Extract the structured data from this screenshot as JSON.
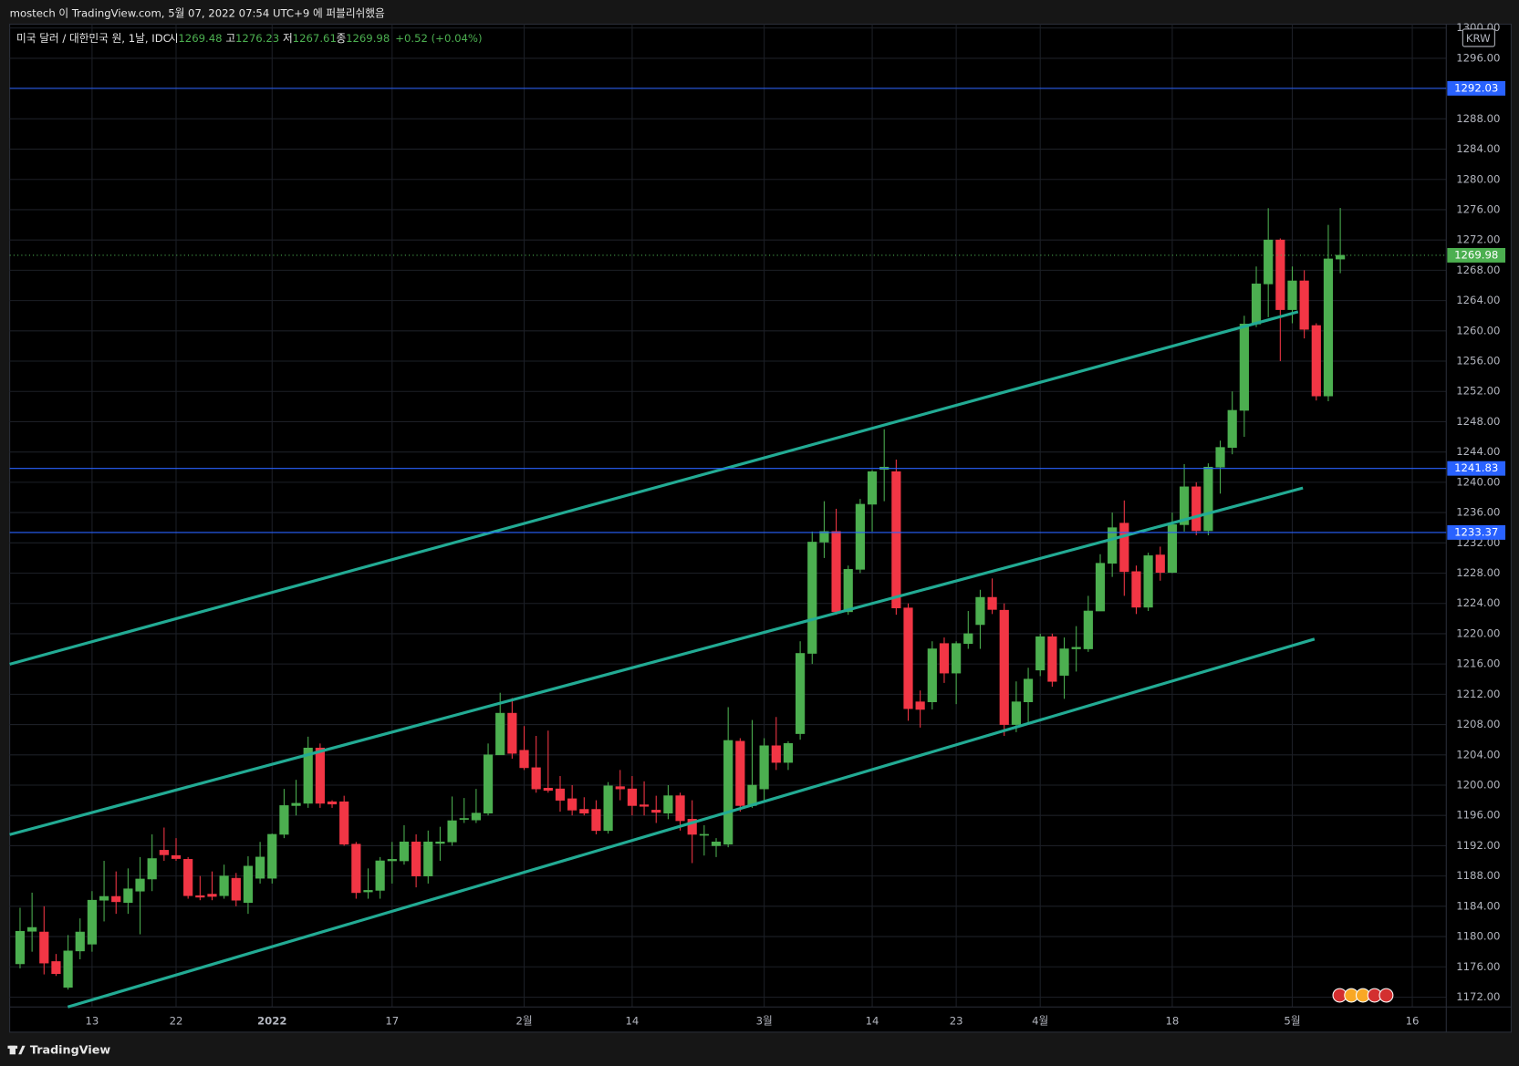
{
  "header": {
    "publish_note": "mostech 이 TradingView.com, 5월 07, 2022 07:54 UTC+9 에 퍼블리쉬했음"
  },
  "chart_data": {
    "type": "candlestick",
    "symbol": "미국 달러 / 대한민국 원, 1날, IDC",
    "legend": {
      "open_label": "시",
      "high_label": "고",
      "low_label": "저",
      "close_label": "종",
      "change": "+0.52 (+0.04%)"
    },
    "currency": "KRW",
    "categories": [
      null,
      null,
      null,
      null,
      null,
      null,
      "13",
      null,
      null,
      null,
      null,
      null,
      null,
      "22",
      null,
      null,
      null,
      null,
      null,
      null,
      null,
      "2022",
      null,
      null,
      null,
      null,
      null,
      null,
      null,
      null,
      null,
      "17",
      null,
      null,
      null,
      null,
      null,
      null,
      null,
      null,
      null,
      null,
      "2월",
      null,
      null,
      null,
      null,
      null,
      null,
      null,
      null,
      "14",
      null,
      null,
      null,
      null,
      null,
      null,
      null,
      null,
      null,
      null,
      "3월",
      null,
      null,
      null,
      null,
      null,
      null,
      null,
      null,
      "14",
      null,
      null,
      null,
      null,
      null,
      null,
      "23",
      null,
      null,
      null,
      null,
      null,
      null,
      "4월",
      null,
      null,
      null,
      null,
      null,
      null,
      null,
      null,
      null,
      null,
      "18",
      null,
      null,
      null,
      null,
      null,
      null,
      null,
      null,
      null,
      "5월",
      null,
      null,
      null,
      null,
      null,
      null,
      null,
      null,
      null,
      "16",
      null,
      null
    ],
    "open": [
      1176.4,
      1180.7,
      1180.6,
      1176.7,
      1173.3,
      1178.1,
      1179,
      1184.8,
      1185.3,
      1184.5,
      1186,
      1187.6,
      1191.4,
      1190.7,
      1190.2,
      1185.4,
      1185.6,
      1185.4,
      1187.7,
      1184.5,
      1187.7,
      1187.7,
      1193.5,
      1197.3,
      1197.6,
      1204.9,
      1197.8,
      1197.8,
      1192.2,
      1185.9,
      1186.1,
      1190,
      1190,
      1192.5,
      1188,
      1192.3,
      1192.5,
      1195.5,
      1195.4,
      1196.3,
      1204,
      1209.5,
      1204.6,
      1202.3,
      1199.6,
      1199.5,
      1198.2,
      1196.8,
      1196.8,
      1194,
      1199.8,
      1199.5,
      1197.4,
      1196.7,
      1196.3,
      1198.6,
      1195.5,
      1193.5,
      1192,
      1192.2,
      1205.8,
      1197.3,
      1199.5,
      1205.2,
      1203,
      1206.8,
      1217.4,
      1232.1,
      1233.5,
      1222.9,
      1228.5,
      1237.1,
      1241.7,
      1241.4,
      1223.4,
      1211,
      1211,
      1218.7,
      1214.8,
      1218.7,
      1221.2,
      1224.8,
      1223.1,
      1208,
      1211,
      1215.2,
      1219.6,
      1214.5,
      1218,
      1218,
      1223,
      1229.3,
      1234.6,
      1228.2,
      1223.5,
      1230.4,
      1228.1,
      1234.4,
      1239.4,
      1233.6,
      1242,
      1244.6,
      1249.5,
      1260.9,
      1266.2,
      1272,
      1262.8,
      1266.6,
      1260.7,
      1251.4,
      1269.48,
      null,
      null,
      null,
      null,
      null,
      null,
      null,
      null
    ],
    "high": [
      1183.8,
      1185.8,
      1184,
      1177.7,
      1180.2,
      1182.4,
      1186,
      1190,
      1188.6,
      1189,
      1190.5,
      1193.5,
      1194.4,
      1193,
      1190.5,
      1188,
      1188.6,
      1189.5,
      1188.4,
      1190.6,
      1192.5,
      1193.6,
      1199.5,
      1200.7,
      1206.4,
      1205.5,
      1198,
      1198.6,
      1192.5,
      1189,
      1190.5,
      1192.5,
      1194.7,
      1193.5,
      1194,
      1194.5,
      1198.5,
      1198.3,
      1199.5,
      1205.5,
      1212.2,
      1211.5,
      1207.8,
      1206.5,
      1207.2,
      1201.2,
      1200,
      1198.4,
      1198,
      1200.4,
      1202,
      1201.2,
      1200.5,
      1198.6,
      1200,
      1199,
      1198,
      1194.7,
      1193,
      1210.3,
      1206.2,
      1208.6,
      1206.2,
      1209,
      1205.8,
      1219,
      1233.5,
      1237.5,
      1236.5,
      1229,
      1237.8,
      1241.6,
      1247,
      1243,
      1224,
      1212.5,
      1219,
      1219.5,
      1219,
      1223,
      1225.8,
      1227.3,
      1224,
      1213.7,
      1215.5,
      1220,
      1220,
      1219.5,
      1221,
      1225,
      1230.5,
      1236,
      1237.6,
      1229,
      1230.7,
      1231.5,
      1236,
      1242.4,
      1240,
      1242.5,
      1245.5,
      1252,
      1262,
      1268.5,
      1276.2,
      1272.2,
      1268.5,
      1268,
      1261,
      1274,
      1276.23,
      null,
      null,
      null,
      null,
      null,
      null,
      null,
      null
    ],
    "low": [
      1175.8,
      1178,
      1175,
      1174.8,
      1173,
      1177,
      1178,
      1182,
      1183,
      1183,
      1180.3,
      1186,
      1190,
      1190,
      1185,
      1184.8,
      1184.8,
      1185,
      1184,
      1183,
      1187,
      1187,
      1193,
      1196,
      1197,
      1197,
      1197,
      1192,
      1185,
      1185,
      1185,
      1187,
      1189.5,
      1186.5,
      1187,
      1190,
      1192,
      1195,
      1195,
      1196,
      1204,
      1203.5,
      1202,
      1199,
      1199,
      1196.5,
      1196,
      1196,
      1193.5,
      1193.6,
      1198,
      1196,
      1196,
      1195,
      1195.5,
      1194,
      1189.7,
      1190.7,
      1190.5,
      1191.8,
      1196.5,
      1197,
      1198,
      1202,
      1202,
      1206,
      1216,
      1230,
      1222.5,
      1222.5,
      1228,
      1233.5,
      1237.5,
      1222.5,
      1208.5,
      1207.6,
      1210,
      1213.5,
      1210.7,
      1218,
      1218,
      1222.6,
      1206.5,
      1207,
      1208,
      1214.4,
      1213,
      1211.4,
      1215,
      1217.6,
      1223,
      1227.5,
      1225,
      1222.6,
      1223,
      1227,
      1228,
      1233.5,
      1233,
      1233,
      1238.5,
      1243.7,
      1246,
      1260.5,
      1261.8,
      1256,
      1261,
      1259,
      1250.8,
      1250.7,
      1267.61,
      null,
      null,
      null,
      null,
      null,
      null,
      null,
      null
    ],
    "close": [
      1180.7,
      1181.2,
      1176.5,
      1175.1,
      1178.1,
      1180.6,
      1184.8,
      1185.3,
      1184.6,
      1186.3,
      1187.6,
      1190.3,
      1190.8,
      1190.3,
      1185.4,
      1185.2,
      1185.3,
      1188,
      1184.8,
      1189.3,
      1190.5,
      1193.5,
      1197.3,
      1197.6,
      1204.9,
      1197.6,
      1197.5,
      1192.2,
      1185.8,
      1186.1,
      1190,
      1190.2,
      1192.5,
      1188,
      1192.5,
      1192.5,
      1195.3,
      1195.6,
      1196.3,
      1204,
      1209.5,
      1204.2,
      1202.3,
      1199.5,
      1199.3,
      1198,
      1196.7,
      1196.3,
      1194,
      1199.9,
      1199.5,
      1197.3,
      1197.2,
      1196.4,
      1198.6,
      1195.3,
      1193.5,
      1193.5,
      1192.5,
      1205.9,
      1197.3,
      1200,
      1205.2,
      1203,
      1205.5,
      1217.4,
      1232.1,
      1233.5,
      1222.9,
      1228.5,
      1237.1,
      1241.4,
      1242,
      1223.4,
      1210.1,
      1210,
      1218,
      1214.8,
      1218.7,
      1220,
      1224.8,
      1223.2,
      1208,
      1211,
      1214,
      1219.6,
      1213.7,
      1218,
      1218.2,
      1223,
      1229.3,
      1234,
      1228.2,
      1223.5,
      1230.3,
      1228.1,
      1234.4,
      1239.4,
      1233.6,
      1242,
      1244.6,
      1249.5,
      1260.9,
      1266.2,
      1272,
      1262.8,
      1266.6,
      1260.2,
      1251.4,
      1269.5,
      1269.98,
      null,
      null,
      null,
      null,
      null,
      null,
      null,
      null
    ],
    "up_color": "#4caf50",
    "down_color": "#f23645",
    "price_lines": [
      {
        "value": 1292.03,
        "color": "#2962ff"
      },
      {
        "value": 1241.83,
        "color": "#2962ff"
      },
      {
        "value": 1233.37,
        "color": "#2962ff"
      }
    ],
    "ylim": [
      1170.7,
      1300.5
    ],
    "yticks": [
      {
        "value": 1172,
        "label": "1172.00"
      },
      {
        "value": 1176,
        "label": "1176.00"
      },
      {
        "value": 1180,
        "label": "1180.00"
      },
      {
        "value": 1184,
        "label": "1184.00"
      },
      {
        "value": 1188,
        "label": "1188.00"
      },
      {
        "value": 1192,
        "label": "1192.00"
      },
      {
        "value": 1196,
        "label": "1196.00"
      },
      {
        "value": 1200,
        "label": "1200.00"
      },
      {
        "value": 1204,
        "label": "1204.00"
      },
      {
        "value": 1208,
        "label": "1208.00"
      },
      {
        "value": 1212,
        "label": "1212.00"
      },
      {
        "value": 1216,
        "label": "1216.00"
      },
      {
        "value": 1220,
        "label": "1220.00"
      },
      {
        "value": 1224,
        "label": "1224.00"
      },
      {
        "value": 1228,
        "label": "1228.00"
      },
      {
        "value": 1232,
        "label": "1232.00"
      },
      {
        "value": 1236,
        "label": "1236.00"
      },
      {
        "value": 1240,
        "label": "1240.00"
      },
      {
        "value": 1244,
        "label": "1244.00"
      },
      {
        "value": 1248,
        "label": "1248.00"
      },
      {
        "value": 1252,
        "label": "1252.00"
      },
      {
        "value": 1256,
        "label": "1256.00"
      },
      {
        "value": 1260,
        "label": "1260.00"
      },
      {
        "value": 1264,
        "label": "1264.00"
      },
      {
        "value": 1268,
        "label": "1268.00"
      },
      {
        "value": 1272,
        "label": "1272.00"
      },
      {
        "value": 1276,
        "label": "1276.00"
      },
      {
        "value": 1280,
        "label": "1280.00"
      },
      {
        "value": 1284,
        "label": "1284.00"
      },
      {
        "value": 1288,
        "label": "1288.00"
      },
      {
        "value": 1292,
        "label": "1292.00"
      },
      {
        "value": 1296,
        "label": "1296.00"
      },
      {
        "value": 1300,
        "label": "1300.00"
      }
    ],
    "grid": true
  },
  "footer": {
    "brand": "TradingView"
  }
}
